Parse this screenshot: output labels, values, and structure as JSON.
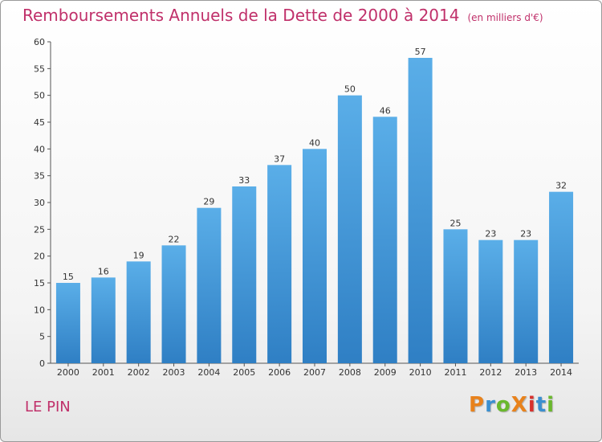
{
  "chart_data": {
    "type": "bar",
    "title": "Remboursements Annuels de la Dette de 2000 à 2014",
    "subtitle": "(en milliers d'€)",
    "categories": [
      "2000",
      "2001",
      "2002",
      "2003",
      "2004",
      "2005",
      "2006",
      "2007",
      "2008",
      "2009",
      "2010",
      "2011",
      "2012",
      "2013",
      "2014"
    ],
    "values": [
      15,
      16,
      19,
      22,
      29,
      33,
      37,
      40,
      50,
      46,
      57,
      25,
      23,
      23,
      32
    ],
    "ylim": [
      0,
      60
    ],
    "yticks": [
      0,
      5,
      10,
      15,
      20,
      25,
      30,
      35,
      40,
      45,
      50,
      55,
      60
    ],
    "xlabel": "",
    "ylabel": "",
    "grid": false,
    "bar_color_top": "#5aaee8",
    "bar_color_bottom": "#2f7fc4"
  },
  "footer": {
    "location": "LE PIN",
    "logo_text": "ProXiti",
    "logo_colors": [
      "#e8821c",
      "#3a8fd0",
      "#6ab82d",
      "#e8821c",
      "#d8312d",
      "#3a8fd0",
      "#6ab82d"
    ]
  }
}
